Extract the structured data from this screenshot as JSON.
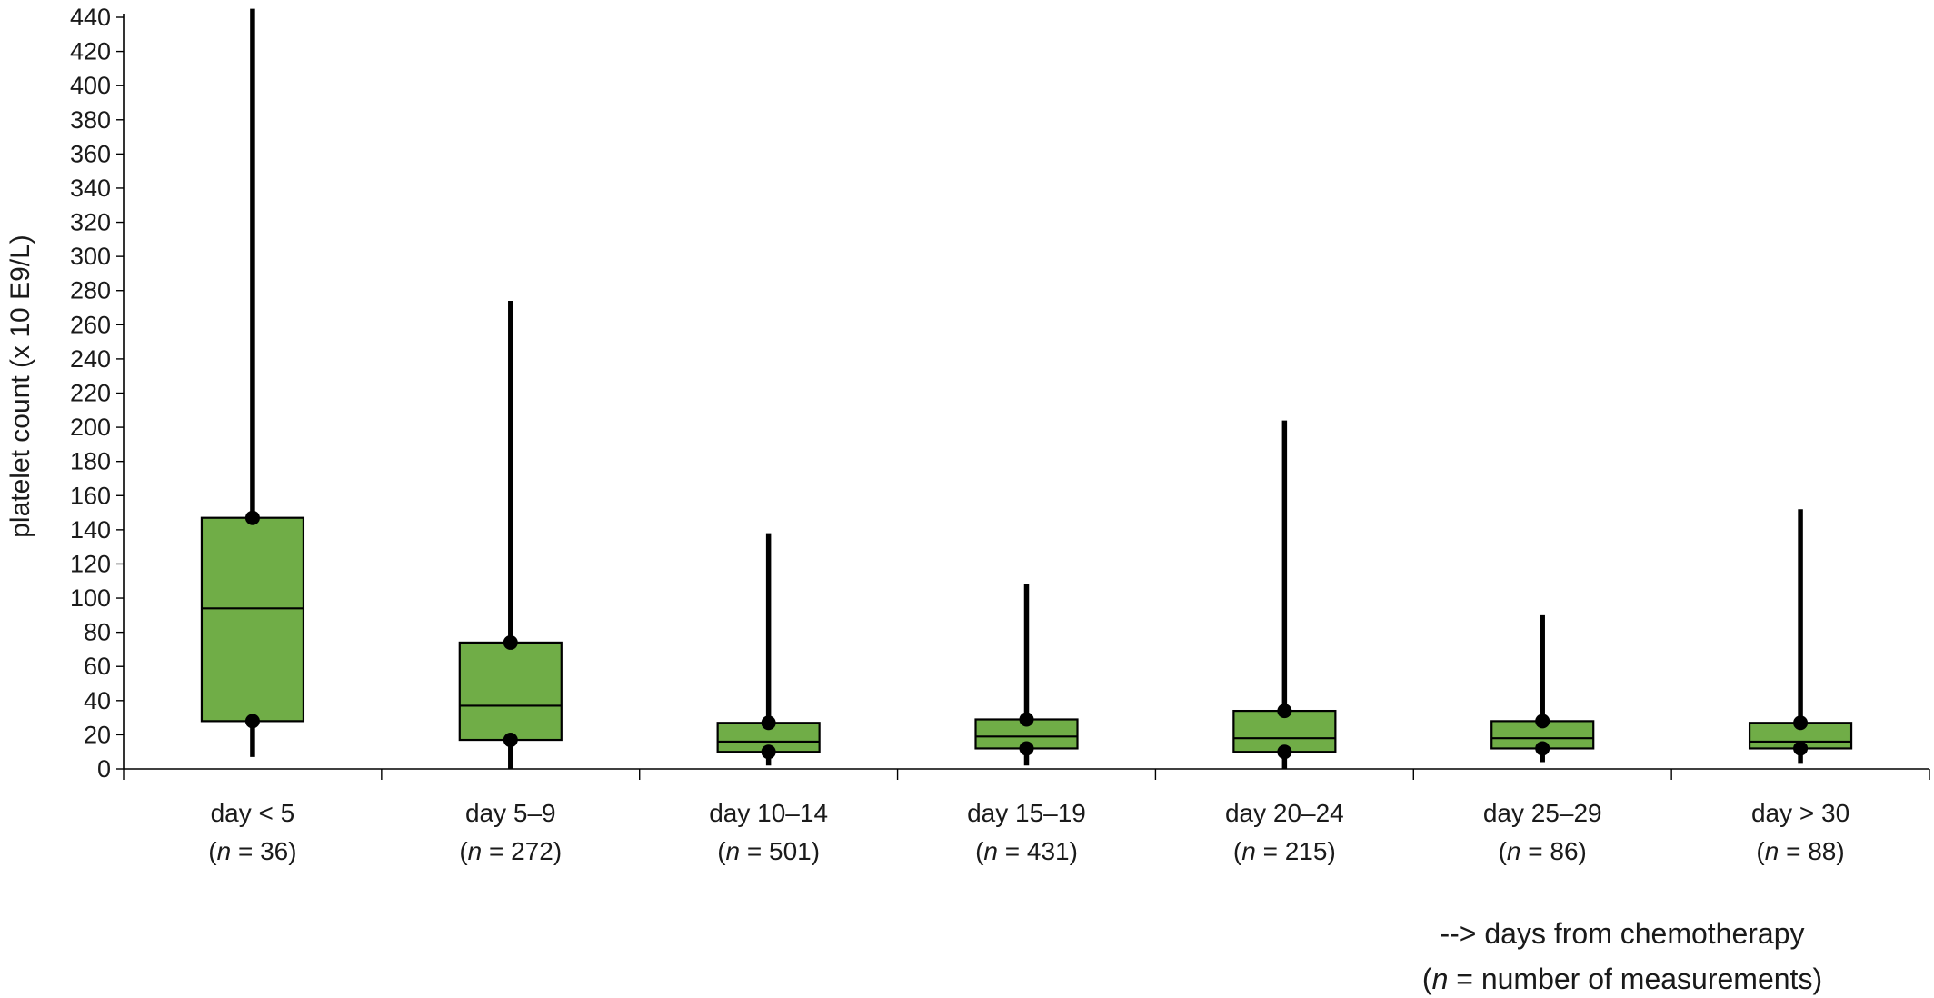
{
  "chart_data": {
    "type": "boxplot",
    "title": "",
    "ylabel": "platelet count (x 10 E9/L)",
    "xlabel": "",
    "ylim": [
      0,
      440
    ],
    "yticks": [
      0,
      20,
      40,
      60,
      80,
      100,
      120,
      140,
      160,
      180,
      200,
      220,
      240,
      260,
      280,
      300,
      320,
      340,
      360,
      380,
      400,
      420,
      440
    ],
    "grid": false,
    "box_color": "#70ad47",
    "line_color": "#000000",
    "categories": [
      {
        "label": "day < 5",
        "n_prefix": "(",
        "n_var": "n",
        "n_text": " = 36)",
        "min": 7,
        "q1": 28,
        "median": 94,
        "q3": 147,
        "max": 445
      },
      {
        "label": "day 5–9",
        "n_prefix": "(",
        "n_var": "n",
        "n_text": " = 272)",
        "min": 0,
        "q1": 17,
        "median": 37,
        "q3": 74,
        "max": 274
      },
      {
        "label": "day 10–14",
        "n_prefix": "(",
        "n_var": "n",
        "n_text": " = 501)",
        "min": 2,
        "q1": 10,
        "median": 16,
        "q3": 27,
        "max": 138
      },
      {
        "label": "day 15–19",
        "n_prefix": "(",
        "n_var": "n",
        "n_text": " = 431)",
        "min": 2,
        "q1": 12,
        "median": 19,
        "q3": 29,
        "max": 108
      },
      {
        "label": "day 20–24",
        "n_prefix": "(",
        "n_var": "n",
        "n_text": " = 215)",
        "min": 0,
        "q1": 10,
        "median": 18,
        "q3": 34,
        "max": 204
      },
      {
        "label": "day 25–29",
        "n_prefix": "(",
        "n_var": "n",
        "n_text": " = 86)",
        "min": 4,
        "q1": 12,
        "median": 18,
        "q3": 28,
        "max": 90
      },
      {
        "label": "day > 30",
        "n_prefix": "(",
        "n_var": "n",
        "n_text": " = 88)",
        "min": 3,
        "q1": 12,
        "median": 16,
        "q3": 27,
        "max": 152
      }
    ],
    "annotation_line1": "-->  days from chemotherapy",
    "annotation_line2": {
      "prefix": "(",
      "var": "n",
      "text": " = number of measurements)"
    }
  }
}
